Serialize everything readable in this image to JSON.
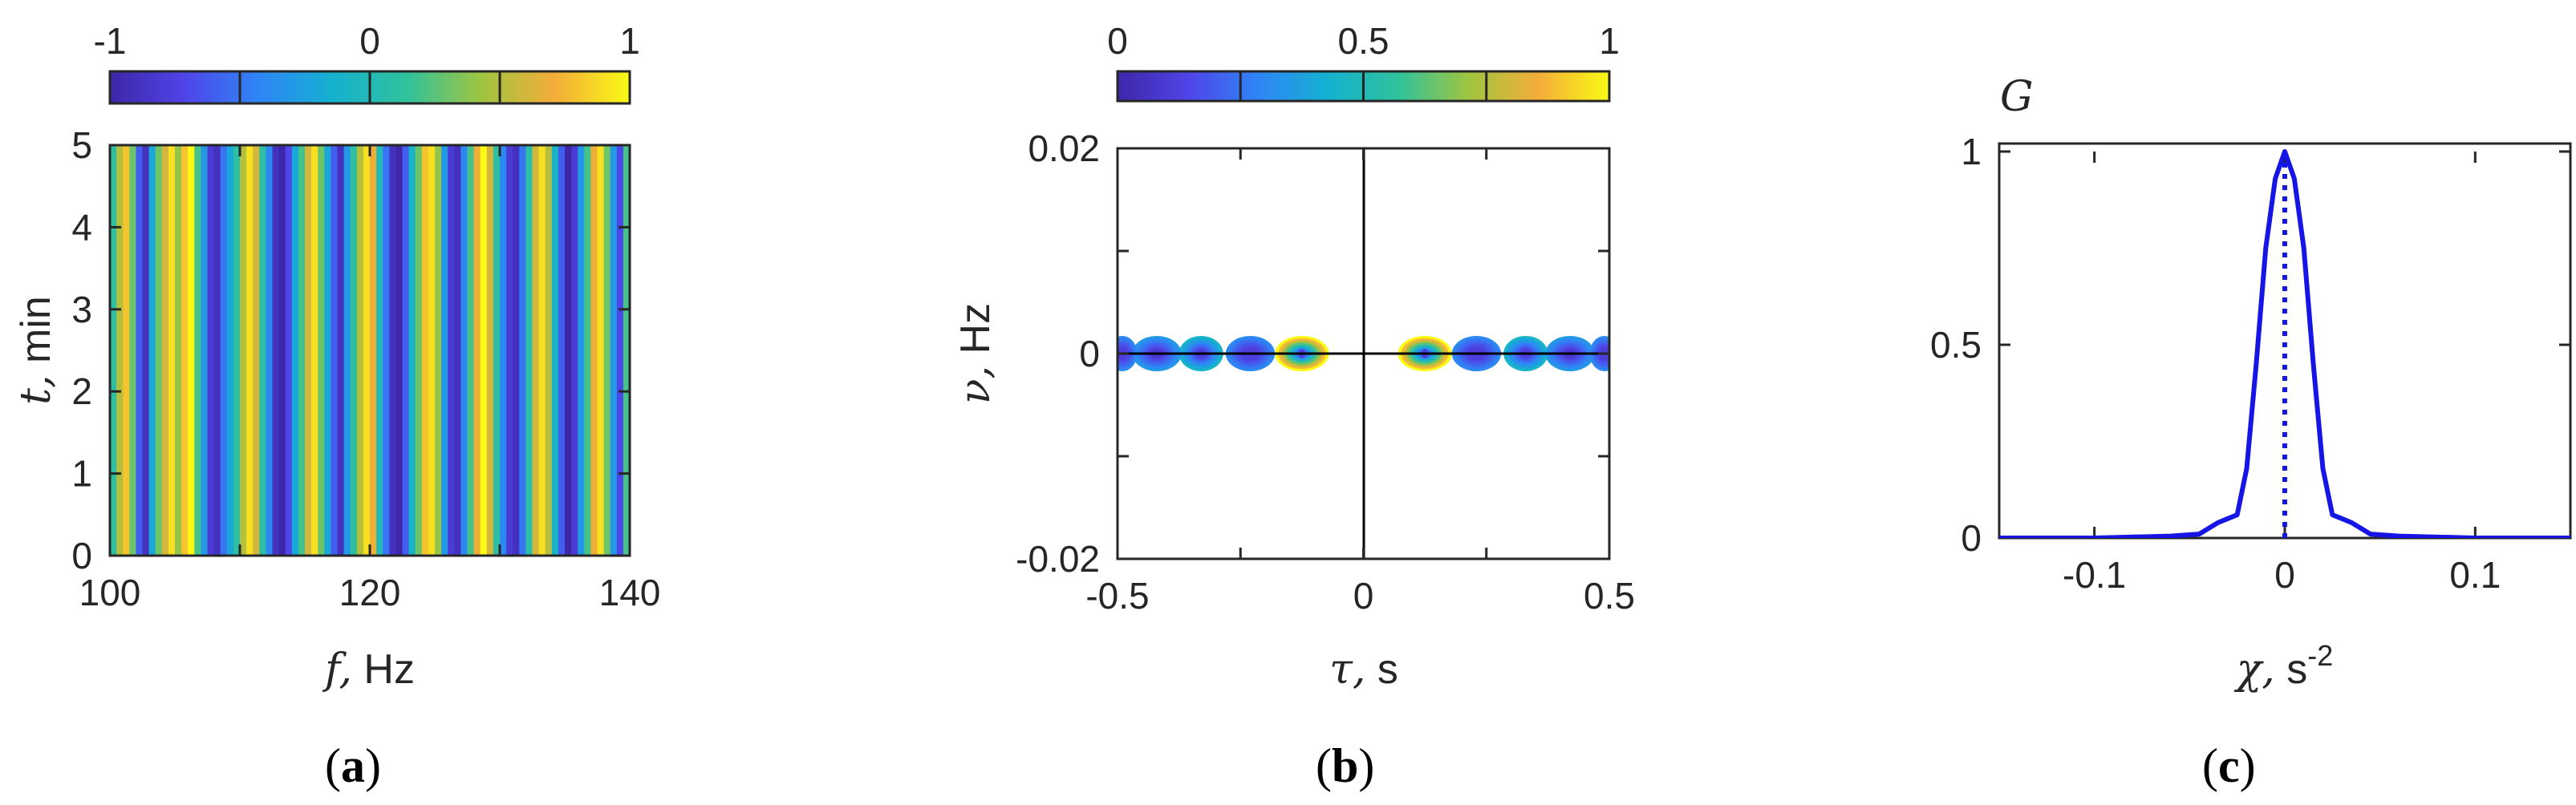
{
  "chart_data": [
    {
      "type": "heatmap",
      "panel_label": "a",
      "xlabel_symbol": "f,",
      "xlabel_unit": "Hz",
      "ylabel_symbol": "t,",
      "ylabel_unit": "min",
      "xlim": [
        100,
        140
      ],
      "ylim": [
        0,
        5
      ],
      "x_ticks": [
        "100",
        "120",
        "140"
      ],
      "y_ticks": [
        "0",
        "1",
        "2",
        "3",
        "4",
        "5"
      ],
      "colorbar": {
        "range": [
          -1,
          1
        ],
        "ticks": [
          "-1",
          "0",
          "1"
        ]
      },
      "colormap": [
        "#3e26a8",
        "#4f44e8",
        "#2f85f6",
        "#14b1d0",
        "#30c29c",
        "#9fc540",
        "#f4ad39",
        "#f9fb15"
      ],
      "x": [
        100.0,
        100.5,
        101.0,
        101.5,
        102.0,
        102.5,
        103.0,
        103.5,
        104.0,
        104.5,
        105.0,
        105.5,
        106.0,
        106.5,
        107.0,
        107.5,
        108.0,
        108.5,
        109.0,
        109.5,
        110.0,
        110.5,
        111.0,
        111.5,
        112.0,
        112.5,
        113.0,
        113.5,
        114.0,
        114.5,
        115.0,
        115.5,
        116.0,
        116.5,
        117.0,
        117.5,
        118.0,
        118.5,
        119.0,
        119.5,
        120.0,
        120.5,
        121.0,
        121.5,
        122.0,
        122.5,
        123.0,
        123.5,
        124.0,
        124.5,
        125.0,
        125.5,
        126.0,
        126.5,
        127.0,
        127.5,
        128.0,
        128.5,
        129.0,
        129.5,
        130.0,
        130.5,
        131.0,
        131.5,
        132.0,
        132.5,
        133.0,
        133.5,
        134.0,
        134.5,
        135.0,
        135.5,
        136.0,
        136.5,
        137.0,
        137.5,
        138.0,
        138.5,
        139.0,
        139.5
      ],
      "values": [
        0.1,
        0.5,
        0.8,
        0.3,
        -0.6,
        -0.9,
        -0.2,
        0.3,
        0.6,
        0.9,
        0.4,
        0.8,
        1.0,
        0.2,
        -0.3,
        -0.8,
        -0.9,
        -0.5,
        -0.2,
        0.1,
        0.5,
        0.9,
        0.6,
        0.1,
        -0.4,
        -0.9,
        -1.0,
        -0.7,
        -0.2,
        0.2,
        0.6,
        0.9,
        0.3,
        -0.2,
        -0.6,
        -0.9,
        -0.3,
        0.1,
        0.5,
        0.9,
        0.7,
        0.0,
        -0.5,
        -0.9,
        -1.0,
        -0.6,
        -0.1,
        0.3,
        0.8,
        0.9,
        0.4,
        -0.3,
        -0.8,
        -0.9,
        -0.4,
        0.2,
        0.7,
        1.0,
        0.6,
        0.1,
        -0.4,
        -0.8,
        -0.9,
        -0.5,
        0.1,
        0.6,
        0.9,
        0.5,
        -0.1,
        -0.6,
        -1.0,
        -0.8,
        -0.3,
        0.2,
        0.7,
        0.9,
        0.3,
        -0.3,
        -0.7,
        0.2
      ]
    },
    {
      "type": "heatmap",
      "panel_label": "b",
      "xlabel_symbol": "τ,",
      "xlabel_unit": "s",
      "ylabel_symbol": "ν,",
      "ylabel_unit": "Hz",
      "xlim": [
        -0.5,
        0.5
      ],
      "ylim": [
        -0.02,
        0.02
      ],
      "x_ticks": [
        "-0.5",
        "0",
        "0.5"
      ],
      "y_ticks": [
        "-0.02",
        "0",
        "0.02"
      ],
      "colorbar": {
        "range": [
          0,
          1
        ],
        "ticks": [
          "0",
          "0.5",
          "1"
        ]
      },
      "blobs": [
        {
          "tau": -0.125,
          "nu": 0,
          "amplitude": 1.0,
          "width": 0.055
        },
        {
          "tau": 0.125,
          "nu": 0,
          "amplitude": 1.0,
          "width": 0.055
        },
        {
          "tau": -0.33,
          "nu": 0,
          "amplitude": 0.45,
          "width": 0.045
        },
        {
          "tau": 0.33,
          "nu": 0,
          "amplitude": 0.45,
          "width": 0.045
        },
        {
          "tau": -0.42,
          "nu": 0,
          "amplitude": 0.35,
          "width": 0.05
        },
        {
          "tau": 0.42,
          "nu": 0,
          "amplitude": 0.35,
          "width": 0.05
        },
        {
          "tau": -0.23,
          "nu": 0,
          "amplitude": 0.3,
          "width": 0.05
        },
        {
          "tau": 0.23,
          "nu": 0,
          "amplitude": 0.3,
          "width": 0.05
        },
        {
          "tau": -0.49,
          "nu": 0,
          "amplitude": 0.3,
          "width": 0.03
        },
        {
          "tau": 0.49,
          "nu": 0,
          "amplitude": 0.3,
          "width": 0.03
        }
      ]
    },
    {
      "type": "line",
      "panel_label": "c",
      "ylabel": "G",
      "xlabel_symbol": "χ,",
      "xlabel_unit": "s",
      "xlabel_exponent": "-2",
      "xlim": [
        -0.15,
        0.15
      ],
      "ylim": [
        0,
        1
      ],
      "x_ticks": [
        "-0.1",
        "0",
        "0.1"
      ],
      "y_ticks": [
        "0",
        "0.5",
        "1"
      ],
      "series": [
        {
          "style": "solid",
          "color": "#1515e6",
          "x": [
            -0.15,
            -0.1,
            -0.06,
            -0.045,
            -0.035,
            -0.025,
            -0.02,
            -0.015,
            -0.01,
            -0.005,
            0,
            0.005,
            0.01,
            0.015,
            0.02,
            0.025,
            0.035,
            0.045,
            0.06,
            0.1,
            0.15
          ],
          "y": [
            0,
            0,
            0.005,
            0.01,
            0.04,
            0.06,
            0.18,
            0.45,
            0.75,
            0.93,
            1.0,
            0.93,
            0.75,
            0.45,
            0.18,
            0.06,
            0.04,
            0.01,
            0.005,
            0,
            0
          ]
        },
        {
          "style": "dotted",
          "color": "#1515e6",
          "x": [
            0,
            0
          ],
          "y": [
            0,
            1
          ]
        }
      ]
    }
  ]
}
